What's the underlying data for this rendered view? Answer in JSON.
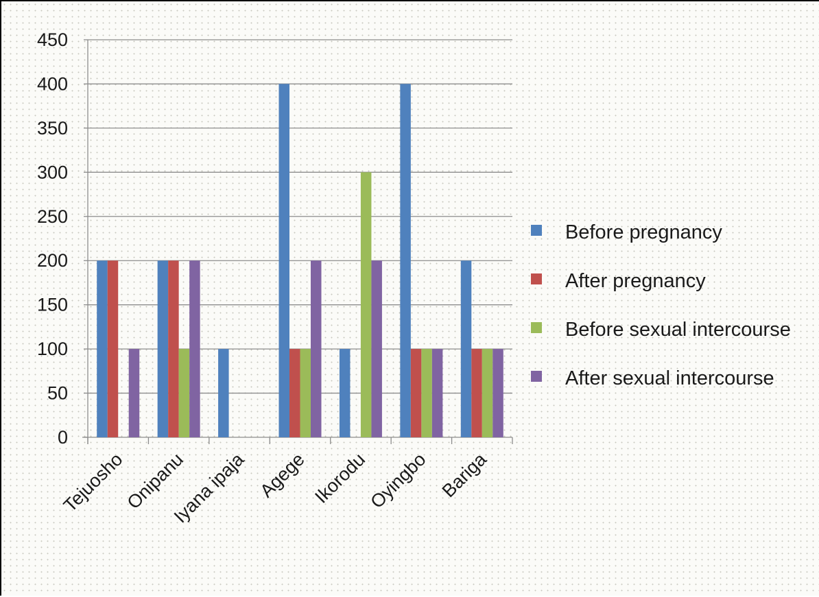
{
  "chart_data": {
    "type": "bar",
    "categories": [
      "Tejuosho",
      "Onipanu",
      "Iyana ipaja",
      "Agege",
      "Ikorodu",
      "Oyingbo",
      "Bariga"
    ],
    "series": [
      {
        "name": "Before pregnancy",
        "color": "#4f81bd",
        "values": [
          200,
          200,
          100,
          400,
          100,
          400,
          200
        ]
      },
      {
        "name": "After pregnancy",
        "color": "#c0504d",
        "values": [
          200,
          200,
          0,
          100,
          0,
          100,
          100
        ]
      },
      {
        "name": "Before sexual intercourse",
        "color": "#9bbb59",
        "values": [
          0,
          100,
          0,
          100,
          300,
          100,
          100
        ]
      },
      {
        "name": "After sexual intercourse",
        "color": "#8064a2",
        "values": [
          100,
          200,
          0,
          200,
          200,
          100,
          100
        ]
      }
    ],
    "ylim": [
      0,
      450
    ],
    "yticks": [
      0,
      50,
      100,
      150,
      200,
      250,
      300,
      350,
      400,
      450
    ],
    "grid": true,
    "legend": "right",
    "title": "",
    "xlabel": "",
    "ylabel": ""
  }
}
